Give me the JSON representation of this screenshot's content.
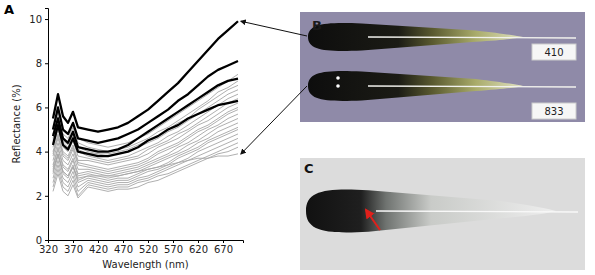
{
  "chart_data": {
    "type": "line",
    "x_label": "Wavelength (nm)",
    "y_label": "Reflectance (%)",
    "xlim": [
      320,
      710
    ],
    "ylim": [
      0,
      10.5
    ],
    "xticks": [
      320,
      370,
      420,
      470,
      520,
      570,
      620,
      670
    ],
    "yticks": [
      0,
      2,
      4,
      6,
      8,
      10
    ],
    "grid": false,
    "x": [
      330,
      340,
      350,
      360,
      370,
      380,
      400,
      420,
      440,
      460,
      480,
      500,
      520,
      540,
      560,
      580,
      600,
      620,
      640,
      660,
      680,
      700
    ],
    "series": [
      {
        "color": "#a6a6a6",
        "values": [
          5.0,
          5.8,
          5.0,
          4.8,
          5.3,
          4.6,
          4.4,
          4.3,
          4.2,
          4.3,
          4.4,
          4.6,
          4.8,
          5.1,
          5.4,
          5.7,
          6.0,
          6.3,
          6.6,
          6.9,
          7.2,
          7.5
        ]
      },
      {
        "color": "#a6a6a6",
        "values": [
          4.8,
          5.6,
          4.8,
          4.6,
          5.1,
          4.4,
          4.2,
          4.1,
          4.0,
          4.1,
          4.2,
          4.4,
          4.6,
          4.9,
          5.1,
          5.4,
          5.7,
          6.0,
          6.3,
          6.7,
          6.9,
          7.2
        ]
      },
      {
        "color": "#a6a6a6",
        "values": [
          4.6,
          5.4,
          4.6,
          4.4,
          4.9,
          4.2,
          4.0,
          3.9,
          3.9,
          4.0,
          4.1,
          4.3,
          4.5,
          4.7,
          5.0,
          5.3,
          5.5,
          5.9,
          6.2,
          6.5,
          6.8,
          7.0
        ]
      },
      {
        "color": "#a6a6a6",
        "values": [
          4.5,
          5.3,
          4.5,
          4.3,
          4.8,
          4.1,
          3.9,
          3.9,
          3.8,
          3.9,
          4.0,
          4.2,
          4.4,
          4.6,
          4.9,
          5.1,
          5.4,
          5.7,
          6.0,
          6.3,
          6.6,
          6.8
        ]
      },
      {
        "color": "#a6a6a6",
        "values": [
          4.4,
          5.2,
          4.4,
          4.2,
          4.7,
          4.0,
          3.8,
          3.7,
          3.6,
          3.7,
          3.8,
          4.0,
          4.2,
          4.4,
          4.7,
          4.9,
          5.2,
          5.5,
          5.8,
          6.1,
          6.4,
          6.6
        ]
      },
      {
        "color": "#a6a6a6",
        "values": [
          4.2,
          5.0,
          4.2,
          4.0,
          4.5,
          3.8,
          3.7,
          3.6,
          3.5,
          3.6,
          3.7,
          3.8,
          4.1,
          4.3,
          4.5,
          4.8,
          5.0,
          5.3,
          5.6,
          5.9,
          6.2,
          6.4
        ]
      },
      {
        "color": "#a6a6a6",
        "values": [
          4.0,
          4.8,
          4.0,
          3.8,
          4.3,
          3.6,
          3.6,
          3.5,
          3.4,
          3.5,
          3.6,
          3.7,
          3.9,
          4.2,
          4.4,
          4.6,
          4.9,
          5.2,
          5.4,
          5.7,
          6.0,
          6.2
        ]
      },
      {
        "color": "#a6a6a6",
        "values": [
          3.9,
          4.7,
          3.9,
          3.7,
          4.2,
          3.5,
          3.4,
          3.3,
          3.2,
          3.3,
          3.4,
          3.5,
          3.7,
          4.0,
          4.2,
          4.4,
          4.7,
          5.0,
          5.2,
          5.5,
          5.8,
          6.0
        ]
      },
      {
        "color": "#a6a6a6",
        "values": [
          3.8,
          4.6,
          3.8,
          3.6,
          4.1,
          3.4,
          3.3,
          3.2,
          3.1,
          3.2,
          3.3,
          3.4,
          3.6,
          3.9,
          4.1,
          4.3,
          4.6,
          4.9,
          5.1,
          5.4,
          5.7,
          5.9
        ]
      },
      {
        "color": "#a6a6a6",
        "values": [
          3.6,
          4.4,
          3.6,
          3.4,
          3.9,
          3.2,
          3.2,
          3.1,
          3.0,
          3.1,
          3.2,
          3.3,
          3.5,
          3.7,
          3.9,
          4.2,
          4.4,
          4.7,
          5.0,
          5.2,
          5.5,
          5.7
        ]
      },
      {
        "color": "#a6a6a6",
        "values": [
          3.4,
          4.2,
          3.4,
          3.2,
          3.7,
          3.0,
          3.1,
          3.0,
          2.9,
          3.0,
          3.1,
          3.2,
          3.4,
          3.6,
          3.8,
          4.0,
          4.3,
          4.5,
          4.8,
          5.1,
          5.3,
          5.5
        ]
      },
      {
        "color": "#a6a6a6",
        "values": [
          3.3,
          4.1,
          3.3,
          3.1,
          3.6,
          2.9,
          3.0,
          2.9,
          2.8,
          2.9,
          3.0,
          3.1,
          3.3,
          3.5,
          3.7,
          3.9,
          4.1,
          4.4,
          4.6,
          4.9,
          5.1,
          5.3
        ]
      },
      {
        "color": "#a6a6a6",
        "values": [
          3.1,
          3.9,
          3.1,
          2.9,
          3.4,
          2.7,
          2.9,
          2.8,
          2.7,
          2.8,
          2.8,
          3.0,
          3.2,
          3.3,
          3.5,
          3.8,
          4.0,
          4.2,
          4.5,
          4.7,
          4.9,
          5.1
        ]
      },
      {
        "color": "#a6a6a6",
        "values": [
          3.0,
          3.8,
          3.0,
          2.8,
          3.3,
          2.6,
          2.8,
          2.7,
          2.6,
          2.7,
          2.7,
          2.9,
          3.1,
          3.2,
          3.4,
          3.7,
          3.9,
          4.1,
          4.4,
          4.6,
          4.8,
          5.0
        ]
      },
      {
        "color": "#a6a6a6",
        "values": [
          2.8,
          3.6,
          2.8,
          2.6,
          3.1,
          2.4,
          2.7,
          2.6,
          2.5,
          2.6,
          2.6,
          2.8,
          2.9,
          3.1,
          3.3,
          3.5,
          3.7,
          4.0,
          4.2,
          4.4,
          4.6,
          4.8
        ]
      },
      {
        "color": "#a6a6a6",
        "values": [
          2.6,
          3.4,
          2.6,
          2.4,
          2.9,
          2.2,
          2.6,
          2.5,
          2.4,
          2.5,
          2.5,
          2.7,
          2.8,
          3.0,
          3.2,
          3.4,
          3.6,
          3.8,
          4.0,
          4.2,
          4.4,
          4.6
        ]
      },
      {
        "color": "#a6a6a6",
        "values": [
          2.4,
          3.2,
          2.4,
          2.2,
          2.7,
          2.0,
          2.5,
          2.4,
          2.3,
          2.4,
          2.4,
          2.6,
          2.7,
          2.9,
          3.0,
          3.2,
          3.4,
          3.6,
          3.8,
          4.0,
          4.2,
          4.4
        ]
      },
      {
        "color": "#a6a6a6",
        "values": [
          2.2,
          3.0,
          2.2,
          2.0,
          2.5,
          1.9,
          2.4,
          2.3,
          2.2,
          2.3,
          2.3,
          2.4,
          2.6,
          2.7,
          2.9,
          3.1,
          3.3,
          3.5,
          3.7,
          3.9,
          4.0,
          4.2
        ]
      },
      {
        "color": "#a6a6a6",
        "values": [
          3.2,
          3.9,
          3.1,
          2.9,
          3.3,
          2.8,
          2.9,
          2.9,
          2.9,
          2.9,
          3.0,
          3.1,
          3.2,
          3.3,
          3.4,
          3.5,
          3.6,
          3.7,
          3.7,
          3.8,
          3.8,
          3.9
        ]
      },
      {
        "color": "#000000",
        "values": [
          5.5,
          6.6,
          5.6,
          5.3,
          5.8,
          5.1,
          5.0,
          4.9,
          5.0,
          5.1,
          5.3,
          5.6,
          5.9,
          6.3,
          6.7,
          7.1,
          7.6,
          8.1,
          8.6,
          9.1,
          9.5,
          9.9
        ]
      },
      {
        "color": "#000000",
        "values": [
          5.0,
          6.0,
          5.0,
          4.8,
          5.3,
          4.6,
          4.5,
          4.4,
          4.5,
          4.6,
          4.8,
          5.0,
          5.3,
          5.6,
          5.9,
          6.3,
          6.6,
          7.0,
          7.4,
          7.7,
          7.9,
          8.1
        ]
      },
      {
        "color": "#000000",
        "values": [
          4.7,
          5.5,
          4.6,
          4.4,
          4.9,
          4.2,
          4.1,
          4.0,
          4.0,
          4.1,
          4.3,
          4.6,
          4.9,
          5.2,
          5.5,
          5.8,
          6.1,
          6.4,
          6.7,
          7.0,
          7.2,
          7.3
        ]
      },
      {
        "color": "#000000",
        "values": [
          4.3,
          5.2,
          4.3,
          4.1,
          4.6,
          4.0,
          3.9,
          3.8,
          3.8,
          3.9,
          4.0,
          4.2,
          4.5,
          4.7,
          5.0,
          5.2,
          5.5,
          5.7,
          5.9,
          6.1,
          6.2,
          6.3
        ]
      }
    ]
  },
  "figure": {
    "panel_labels": [
      "A",
      "B",
      "C"
    ],
    "feather_tags": [
      "410",
      "833"
    ]
  }
}
